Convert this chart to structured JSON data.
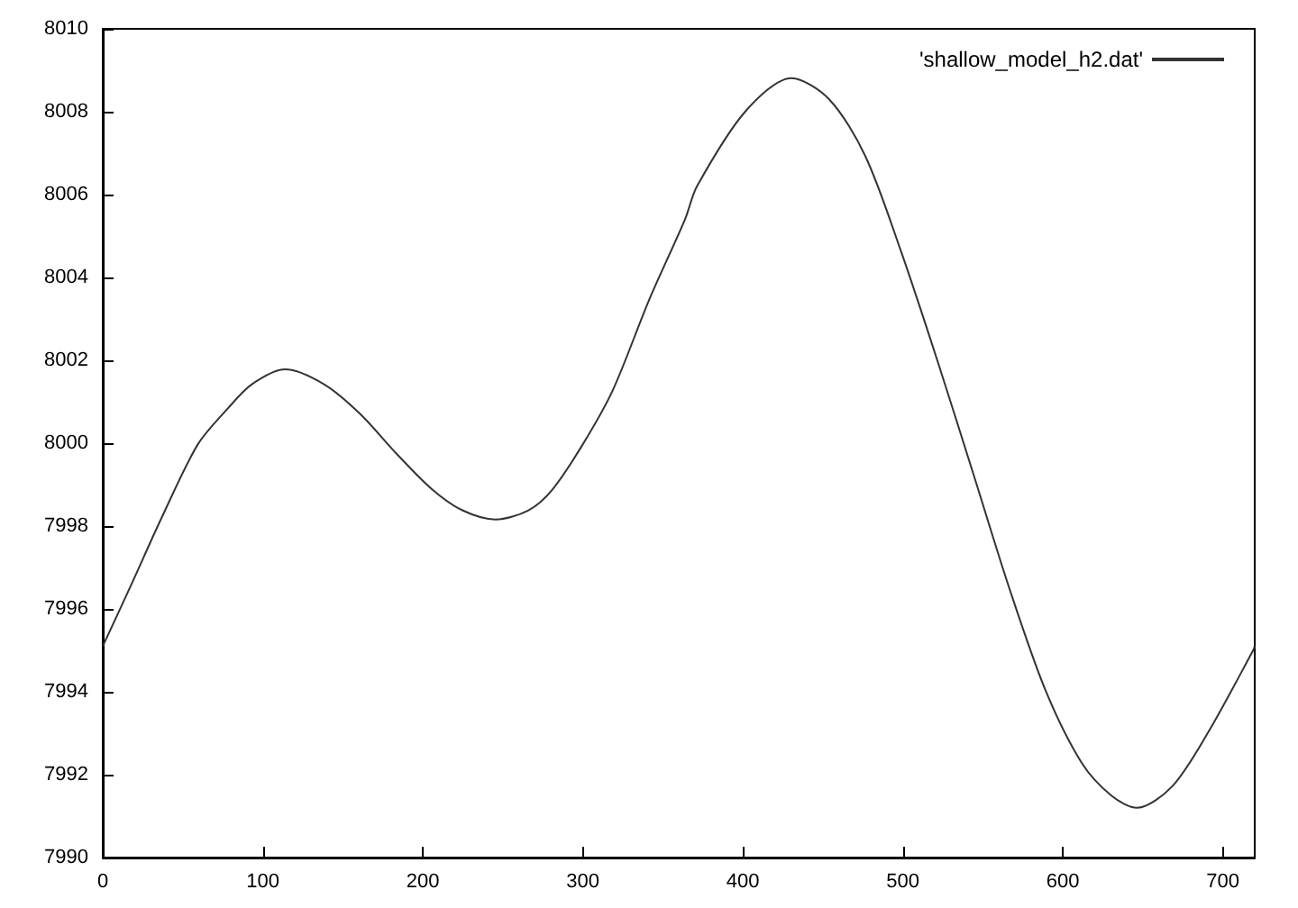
{
  "chart_data": {
    "type": "line",
    "x": [
      0,
      18,
      36.8,
      59.4,
      78.2,
      93.2,
      113.9,
      138.3,
      161,
      183.5,
      206,
      224.8,
      245.5,
      266,
      281,
      300,
      318.8,
      341.4,
      363.9,
      371.4,
      401.5,
      430.4,
      454,
      476.6,
      499.1,
      521.6,
      544.2,
      566.7,
      589.3,
      611.8,
      630.6,
      646.4,
      668.2,
      690.7,
      719,
      720
    ],
    "series": [
      {
        "name": "'shallow_model_h2.dat'",
        "color": "#333333",
        "values": [
          7995.1,
          7996.6,
          7998.2,
          7999.97,
          8000.84,
          8001.42,
          8001.78,
          8001.42,
          8000.7,
          7999.75,
          7998.88,
          7998.38,
          7998.16,
          7998.38,
          7998.88,
          7999.97,
          8001.28,
          8003.45,
          8005.4,
          8006.2,
          8008.0,
          8008.81,
          8008.3,
          8006.93,
          8004.61,
          8002.0,
          7999.25,
          7996.49,
          7994.03,
          7992.29,
          7991.49,
          7991.2,
          7991.71,
          7993.01,
          7995.0,
          7995.1
        ]
      }
    ],
    "xlim": [
      0,
      720
    ],
    "xticks": [
      0,
      100,
      200,
      300,
      400,
      500,
      600,
      700
    ],
    "ylim": [
      7990,
      8010
    ],
    "yticks": [
      7990,
      7992,
      7994,
      7996,
      7998,
      8000,
      8002,
      8004,
      8006,
      8008,
      8010
    ],
    "legend": "top right",
    "marker": "none",
    "line_style": "solid",
    "grid": false
  }
}
